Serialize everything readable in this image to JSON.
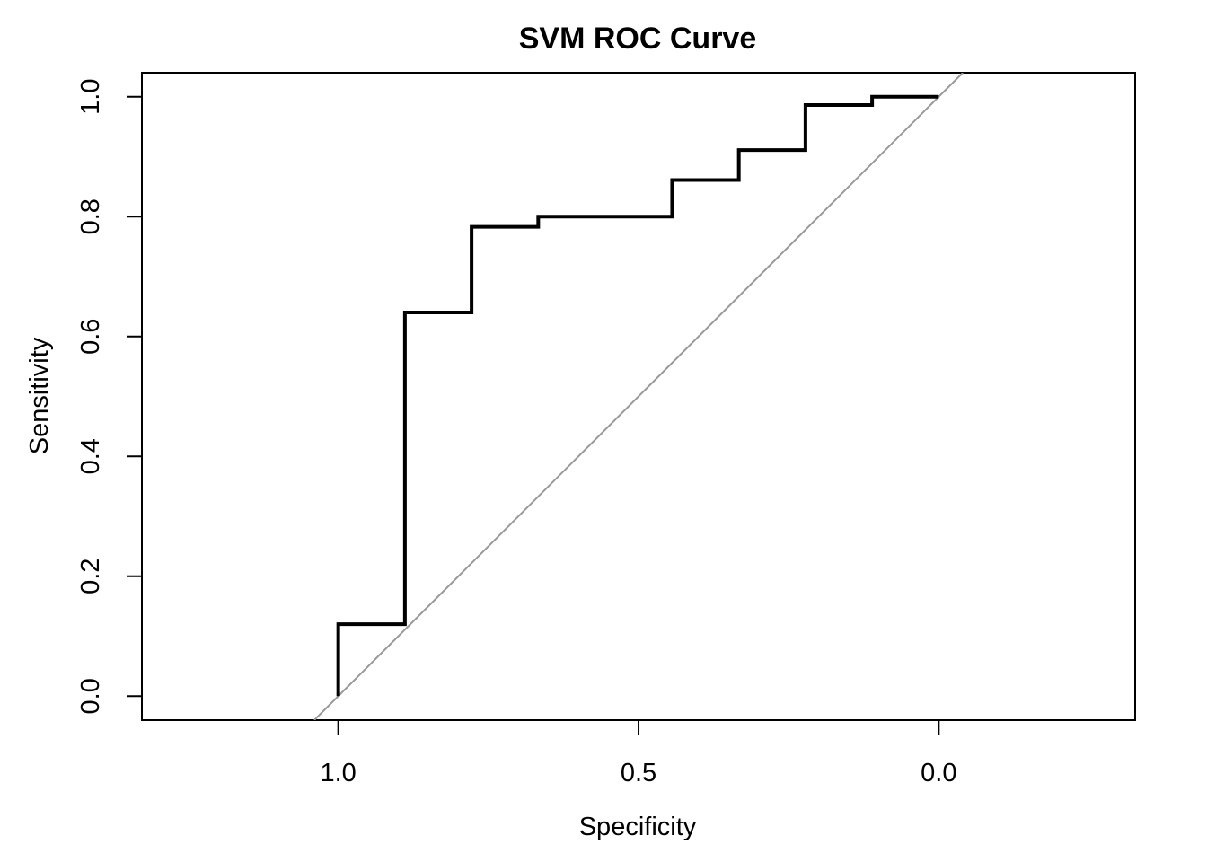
{
  "chart_data": {
    "type": "line",
    "title": "SVM ROC Curve",
    "xlabel": "Specificity",
    "ylabel": "Sensitivity",
    "x_reversed": true,
    "xlim": [
      1.327,
      -0.327
    ],
    "ylim": [
      -0.04,
      1.04
    ],
    "x_ticks": [
      "1.0",
      "0.5",
      "0.0"
    ],
    "y_ticks": [
      "0.0",
      "0.2",
      "0.4",
      "0.6",
      "0.8",
      "1.0"
    ],
    "grid": false,
    "series": [
      {
        "color": "#000000",
        "specificity": [
          1.0,
          1.0,
          0.889,
          0.889,
          0.778,
          0.778,
          0.667,
          0.667,
          0.444,
          0.444,
          0.333,
          0.333,
          0.222,
          0.222,
          0.111,
          0.111,
          0.0
        ],
        "sensitivity": [
          0.0,
          0.12,
          0.12,
          0.64,
          0.64,
          0.783,
          0.783,
          0.8,
          0.8,
          0.861,
          0.861,
          0.911,
          0.911,
          0.986,
          0.986,
          1.0,
          1.0
        ]
      }
    ],
    "reference_line": {
      "color": "#999999",
      "description": "diagonal sensitivity = 1 - specificity"
    }
  }
}
